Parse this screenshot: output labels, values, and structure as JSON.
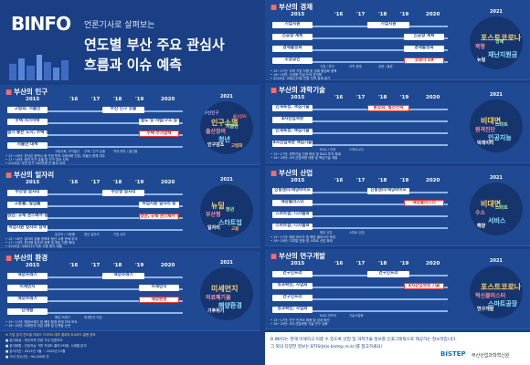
{
  "header": {
    "logo": "BINFO",
    "subtitle": "언론기사로 살펴보는",
    "title1": "연도별 부산 주요 관심사",
    "title2": "흐름과 이슈 예측"
  },
  "years": [
    "2015",
    "'16",
    "'17",
    "'18",
    "'19",
    "2020"
  ],
  "cloud_year": "2021",
  "panels": {
    "population": {
      "title": "부산의 인구",
      "pills": [
        "고령화, 저출산",
        "주택 저가하락",
        "살기 좋은 도시, 주택 정책",
        "저출산 대책",
        "부산 인구 유출",
        "살도 및 저렴/구조 등",
        "주택 주거정책"
      ],
      "subs": [
        "고령사회, 초저출산",
        "주택 / 인구 유출",
        "역대 최저 / 출산율"
      ],
      "notes": [
        "• 15~16년: 부산은 광역시 중 가장 먼저 고령사회 진입, 저출산 문제 대두",
        "• 17~18년: 청년 인구 유출 및 인구 감소 지속",
        "• 2020년: 부산 인구 340만명 선 붕괴 우려"
      ],
      "cloud": [
        "인구소멸",
        "출산장려",
        "청년",
        "인구감소",
        "저출산",
        "고령화",
        "부산인구",
        "출산장려"
      ]
    },
    "jobs": {
      "title": "부산의 일자리",
      "pills": [
        "부산형 일자리",
        "고용률, 실업률",
        "청년, 규제 관스페서 등",
        "취업지원 일자리 정책",
        "부산형 일자리",
        "취업지원 일자리 등",
        "청년, 규제 관스페서 등"
      ],
      "subs": [
        "일자리 / 고용률",
        "청년 일자리",
        "기업 유치"
      ],
      "notes": [
        "• 15~16년: 일자리 창출 정책과 청년 고용 문제 부각",
        "• 17~19년: 부산형 일자리 정책 및 취업 지원 확대",
        "• 2020년: 코로나19 이후 고용 위기 대응"
      ],
      "cloud": [
        "뉴딜",
        "부산형",
        "스타트업",
        "일자리",
        "청년",
        "고용"
      ]
    },
    "environment": {
      "title": "부산의 환경",
      "pills": [
        "해양쓰레기",
        "미세먼지",
        "해양쓰레기",
        "난개발",
        "해양쓰레기",
        "미세먼지",
        "해양환경"
      ],
      "subs": [
        "해양 쓰레기",
        "미세먼지 저감"
      ],
      "notes": [
        "• 15~17년: 해양쓰레기 및 해양 환경 문제 지속 보도",
        "• 18~20년: 미세먼지 저감 대책 및 난개발 논란"
      ],
      "cloud": [
        "미세먼지",
        "의료폐기물",
        "해양환경",
        "기후위기"
      ]
    },
    "economy": {
      "title": "부산의 경제",
      "pills": [
        "기업지원",
        "신공항 계획",
        "경제활성화",
        "소상공인",
        "기업지원",
        "신공항 계획",
        "경제활성화",
        "코로나 19"
      ],
      "subs": [
        "기업 / 투자",
        "지역 경제",
        "공항 / 물류"
      ],
      "notes": [
        "• 15~17년: 지역 기업 지원 및 경제 활성화 정책",
        "• 18~19년: 신공항 건설 논의 본격화",
        "• 2020년: 코로나19로 인한 지역 경제 위기"
      ],
      "cloud": [
        "포스트코로나",
        "북항",
        "재난지원금",
        "뉴딜",
        "경제"
      ]
    },
    "science": {
      "title": "부산의 과학기술",
      "pills": [
        "인재육성, 핵심기술",
        "4차산업혁명",
        "인재육성, 핵심기술",
        "4차산업혁명 핵심기술",
        "통상화, 발전전략"
      ],
      "subs": [
        "R&D / 인재",
        "스마트시티"
      ],
      "notes": [
        "• 15~17년: 과학기술 인재 육성 및 R&D 투자 확대",
        "• 18~20년: 4차 산업혁명 대응 및 핵심기술 개발"
      ],
      "cloud": [
        "비대면",
        "원격진단",
        "인공지능",
        "빅데이터",
        "스마트"
      ]
    },
    "industry": {
      "title": "부산의 산업",
      "pills": [
        "진흥센터/해양바이오",
        "해양클러스터",
        "스마트팜, 디지털화",
        "스마트팜, 디지털화",
        "진흥센터/해양바이오",
        "해양클러스터"
      ],
      "subs": [
        "해양 산업",
        "스마트 산업"
      ],
      "notes": [
        "• 15~17년: 해양 바이오 및 해양 클러스터 육성",
        "• 18~20년: 디지털 전환 및 스마트 산업 확대"
      ],
      "cloud": [
        "비대면",
        "수소",
        "서비스",
        "해양",
        "스마트"
      ]
    },
    "research": {
      "title": "부산의 연구개발",
      "pills": [
        "연구인프라",
        "성과확산, 사업화",
        "연구인프라",
        "성과확산, 사업화",
        "연구인프라",
        "4차산업혁명 기술"
      ],
      "subs": [
        "R&D 인프라",
        "기술사업화"
      ],
      "notes": [
        "• 15~17년: 연구 인프라 확충 및 성과 확산",
        "• 18~20년: 4차 산업혁명 기술 연구 강화"
      ],
      "cloud": [
        "포스트코로나",
        "혁신클러스터",
        "스마트공장",
        "연구개발"
      ]
    }
  },
  "footer": {
    "notes": [
      "※ 기업 분석 연도별 키워드 TOP20 대부 결과의 B INFO 결합 정보",
      "■ 분석대상 : 부산지역 관련 기사 언론보도",
      "■ 분석방법 : 인공지능 기반 키워드 클러스터링, 시계열 분석",
      "■ 분석기간 : 2015년 1월 ~ 2020년 12월",
      "■ 기사 건수(건) : 90,000여 건"
    ],
    "binfo_text1": "B INFO는 현재 이해하고 이를 수 있도록 산업 및 과학기술 정보를 인포그래픽으로 제공하는 정보지입니다.",
    "binfo_text2": "그 외의 다양한 정보는 BTIS(btis.bistep.re.kr)를 참고하세요!",
    "org": "부산산업과학혁신원",
    "org_logo": "BISTEP"
  },
  "colors": {
    "bg": "#1a3f84",
    "panel": "#1f4a93",
    "accent": "#e23c3c",
    "pill": "#ffffff"
  }
}
